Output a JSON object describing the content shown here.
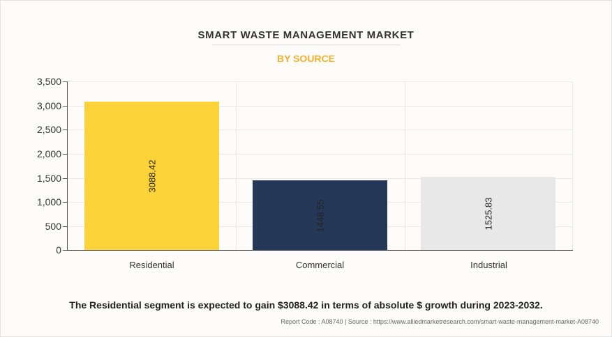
{
  "header": {
    "title": "SMART WASTE MANAGEMENT MARKET",
    "subtitle": "BY SOURCE"
  },
  "colors": {
    "subtitle": "#f5b02e",
    "residential": "#fdd33a",
    "commercial": "#253858",
    "industrial": "#e8e8e8"
  },
  "axis": {
    "y_ticks": [
      "0",
      "500",
      "1,000",
      "1,500",
      "2,000",
      "2,500",
      "3,000",
      "3,500"
    ]
  },
  "chart_data": {
    "type": "bar",
    "title": "SMART WASTE MANAGEMENT MARKET",
    "subtitle": "BY SOURCE",
    "categories": [
      "Residential",
      "Commercial",
      "Industrial"
    ],
    "values": [
      3088.42,
      1448.55,
      1525.83
    ],
    "value_labels": [
      "3088.42",
      "1448.55",
      "1525.83"
    ],
    "colors": [
      "#fdd33a",
      "#253858",
      "#e8e8e8"
    ],
    "xlabel": "",
    "ylabel": "",
    "ylim": [
      0,
      3500
    ],
    "y_ticks": [
      0,
      500,
      1000,
      1500,
      2000,
      2500,
      3000,
      3500
    ],
    "grid": true,
    "legend": "none"
  },
  "footer": {
    "caption": "The Residential segment is expected to gain $3088.42 in terms of absolute $ growth during 2023-2032.",
    "source": "Report Code : A08740  |  Source : https://www.alliedmarketresearch.com/smart-waste-management-market-A08740"
  }
}
